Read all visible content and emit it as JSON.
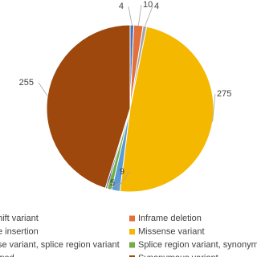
{
  "chart_data": {
    "type": "pie",
    "categories": [
      "hift variant",
      "Inframe deletion",
      "e insertion",
      "Missense variant",
      "se variant, splice region variant",
      "Splice region variant, synonymo",
      "ined",
      "Synonymous variant"
    ],
    "values": [
      4,
      10,
      4,
      275,
      9,
      5,
      2,
      255
    ],
    "colors": [
      "#4472c4",
      "#e2703a",
      "#a5a5a5",
      "#f5b800",
      "#5b9bd5",
      "#70ad47",
      "#264478",
      "#9e480e"
    ]
  }
}
